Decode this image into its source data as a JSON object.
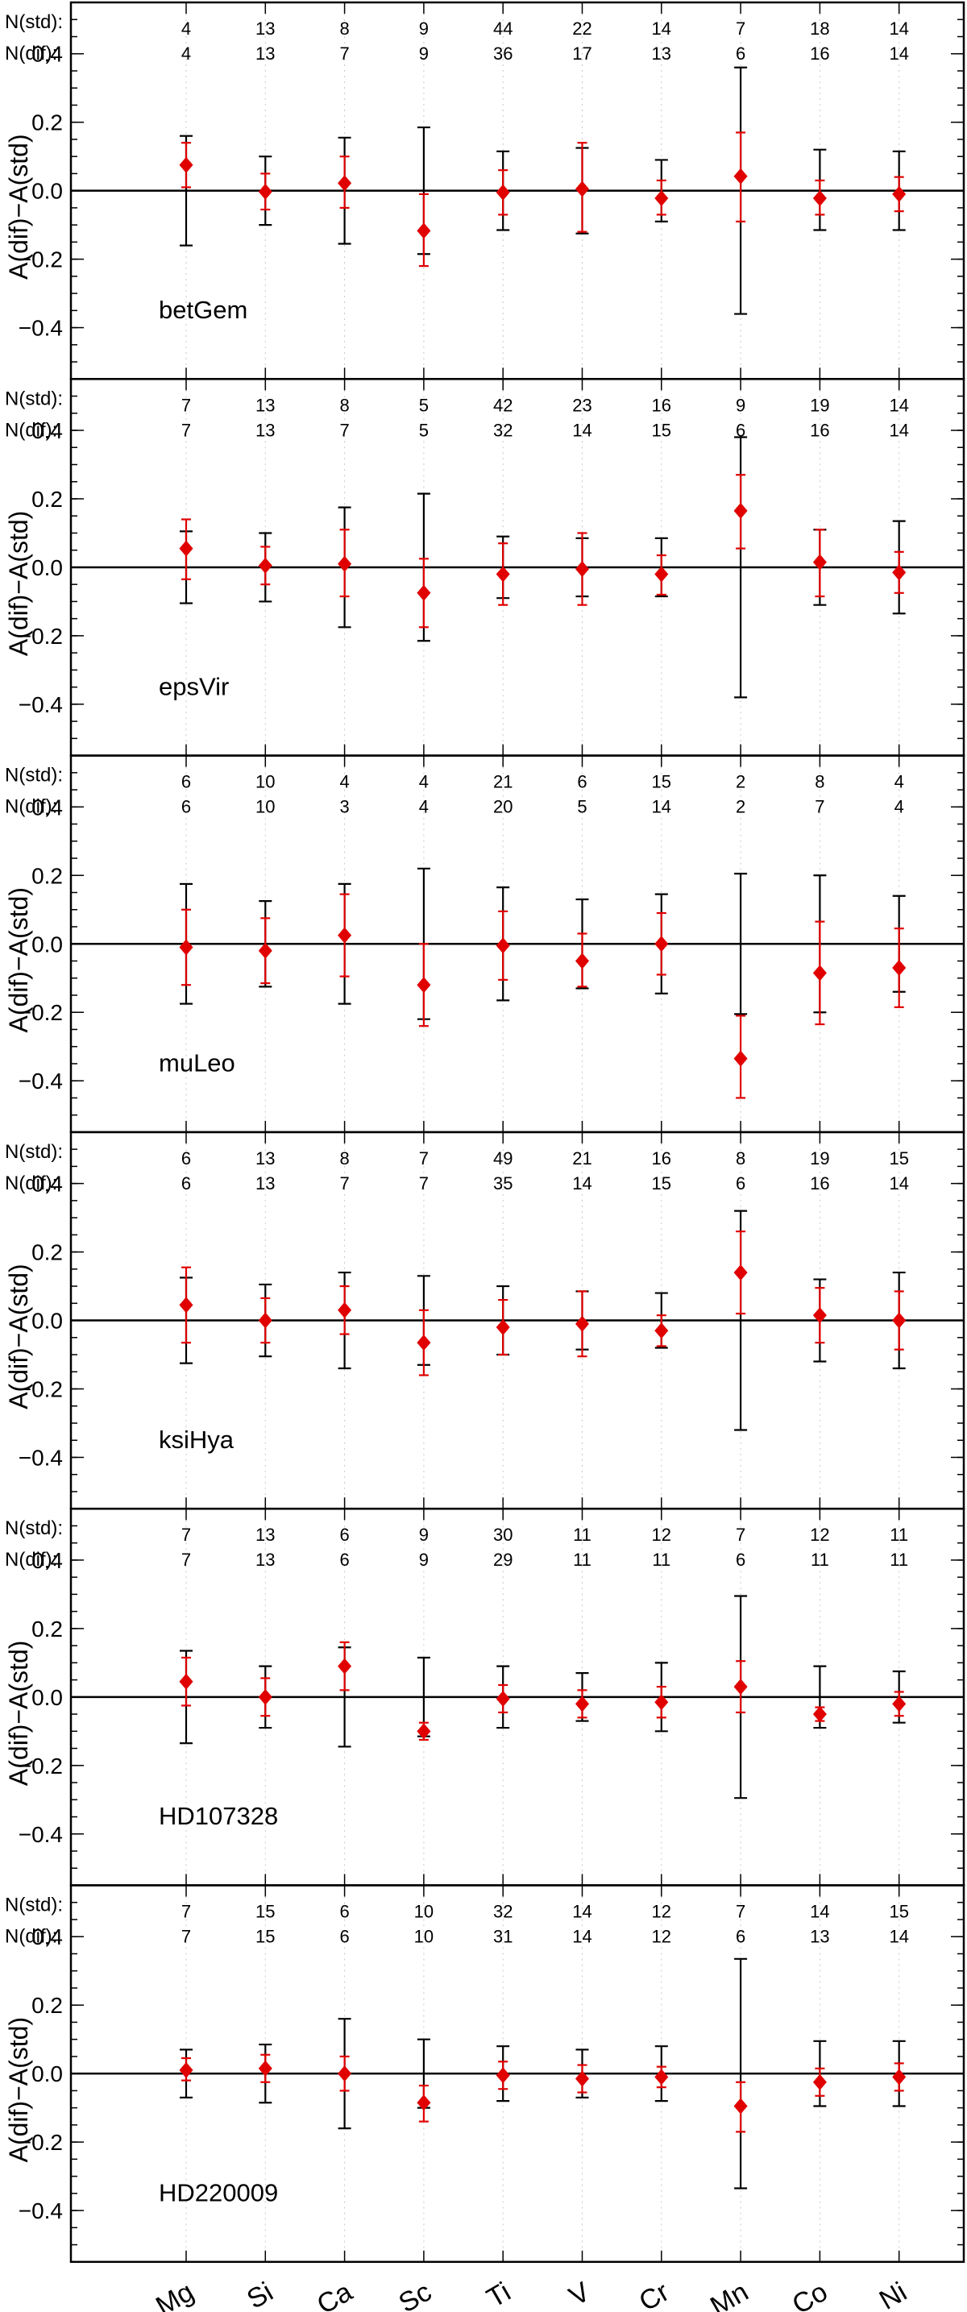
{
  "chart_data": {
    "type": "scatter",
    "ylabel": "A(dif)−A(std)",
    "categories": [
      "Mg",
      "Si",
      "Ca",
      "Sc",
      "Ti",
      "V",
      "Cr",
      "Mn",
      "Co",
      "Ni"
    ],
    "ylim": [
      -0.55,
      0.55
    ],
    "yticks": [
      -0.4,
      -0.2,
      0.0,
      0.2,
      0.4
    ],
    "ytick_labels": [
      "−0.4",
      "−0.2",
      "0.0",
      "0.2",
      "0.4"
    ],
    "count_labels": [
      "N(std):",
      "N(dif):"
    ],
    "marker_color": "#e00000",
    "errbar_colors": {
      "std": "#000000",
      "dif": "#e00000"
    },
    "grid": "vertical dotted gridlines at each element",
    "panels": [
      {
        "star": "betGem",
        "n_std": [
          4,
          13,
          8,
          9,
          44,
          22,
          14,
          7,
          18,
          14
        ],
        "n_dif": [
          4,
          13,
          7,
          9,
          36,
          17,
          13,
          6,
          16,
          14
        ],
        "values": [
          0.075,
          -0.003,
          0.022,
          -0.117,
          -0.005,
          0.005,
          -0.022,
          0.042,
          -0.022,
          -0.01
        ],
        "err_black": [
          [
            -0.16,
            0.16
          ],
          [
            -0.1,
            0.1
          ],
          [
            -0.155,
            0.155
          ],
          [
            -0.185,
            0.185
          ],
          [
            -0.115,
            0.115
          ],
          [
            -0.125,
            0.125
          ],
          [
            -0.09,
            0.09
          ],
          [
            -0.36,
            0.36
          ],
          [
            -0.115,
            0.12
          ],
          [
            -0.115,
            0.115
          ]
        ],
        "err_red": [
          [
            0.01,
            0.14
          ],
          [
            -0.055,
            0.05
          ],
          [
            -0.05,
            0.1
          ],
          [
            -0.22,
            -0.01
          ],
          [
            -0.07,
            0.06
          ],
          [
            -0.12,
            0.14
          ],
          [
            -0.07,
            0.03
          ],
          [
            -0.09,
            0.17
          ],
          [
            -0.07,
            0.03
          ],
          [
            -0.06,
            0.04
          ]
        ]
      },
      {
        "star": "epsVir",
        "n_std": [
          7,
          13,
          8,
          5,
          42,
          23,
          16,
          9,
          19,
          14
        ],
        "n_dif": [
          7,
          13,
          7,
          5,
          32,
          14,
          15,
          6,
          16,
          14
        ],
        "values": [
          0.055,
          0.005,
          0.01,
          -0.075,
          -0.02,
          -0.005,
          -0.02,
          0.165,
          0.015,
          -0.015
        ],
        "err_black": [
          [
            -0.105,
            0.105
          ],
          [
            -0.1,
            0.1
          ],
          [
            -0.175,
            0.175
          ],
          [
            -0.215,
            0.215
          ],
          [
            -0.09,
            0.09
          ],
          [
            -0.085,
            0.085
          ],
          [
            -0.085,
            0.085
          ],
          [
            -0.38,
            0.38
          ],
          [
            -0.11,
            0.11
          ],
          [
            -0.135,
            0.135
          ]
        ],
        "err_red": [
          [
            -0.035,
            0.14
          ],
          [
            -0.05,
            0.06
          ],
          [
            -0.085,
            0.11
          ],
          [
            -0.175,
            0.025
          ],
          [
            -0.11,
            0.07
          ],
          [
            -0.11,
            0.1
          ],
          [
            -0.08,
            0.035
          ],
          [
            0.055,
            0.27
          ],
          [
            -0.085,
            0.11
          ],
          [
            -0.075,
            0.045
          ]
        ]
      },
      {
        "star": "muLeo",
        "n_std": [
          6,
          10,
          4,
          4,
          21,
          6,
          15,
          2,
          8,
          4
        ],
        "n_dif": [
          6,
          10,
          3,
          4,
          20,
          5,
          14,
          2,
          7,
          4
        ],
        "values": [
          -0.01,
          -0.02,
          0.025,
          -0.12,
          -0.005,
          -0.05,
          0.0,
          -0.335,
          -0.085,
          -0.07
        ],
        "err_black": [
          [
            -0.175,
            0.175
          ],
          [
            -0.125,
            0.125
          ],
          [
            -0.175,
            0.175
          ],
          [
            -0.22,
            0.22
          ],
          [
            -0.165,
            0.165
          ],
          [
            -0.13,
            0.13
          ],
          [
            -0.145,
            0.145
          ],
          [
            -0.205,
            0.205
          ],
          [
            -0.2,
            0.2
          ],
          [
            -0.14,
            0.14
          ]
        ],
        "err_red": [
          [
            -0.12,
            0.1
          ],
          [
            -0.115,
            0.075
          ],
          [
            -0.095,
            0.145
          ],
          [
            -0.24,
            0.0
          ],
          [
            -0.105,
            0.095
          ],
          [
            -0.125,
            0.03
          ],
          [
            -0.09,
            0.09
          ],
          [
            -0.45,
            -0.21
          ],
          [
            -0.235,
            0.065
          ],
          [
            -0.185,
            0.045
          ]
        ]
      },
      {
        "star": "ksiHya",
        "n_std": [
          6,
          13,
          8,
          7,
          49,
          21,
          16,
          8,
          19,
          15
        ],
        "n_dif": [
          6,
          13,
          7,
          7,
          35,
          14,
          15,
          6,
          16,
          14
        ],
        "values": [
          0.045,
          0.0,
          0.03,
          -0.065,
          -0.02,
          -0.01,
          -0.03,
          0.14,
          0.015,
          0.0
        ],
        "err_black": [
          [
            -0.125,
            0.125
          ],
          [
            -0.105,
            0.105
          ],
          [
            -0.14,
            0.14
          ],
          [
            -0.13,
            0.13
          ],
          [
            -0.1,
            0.1
          ],
          [
            -0.085,
            0.085
          ],
          [
            -0.08,
            0.08
          ],
          [
            -0.32,
            0.32
          ],
          [
            -0.12,
            0.12
          ],
          [
            -0.14,
            0.14
          ]
        ],
        "err_red": [
          [
            -0.065,
            0.155
          ],
          [
            -0.065,
            0.065
          ],
          [
            -0.04,
            0.1
          ],
          [
            -0.16,
            0.03
          ],
          [
            -0.1,
            0.06
          ],
          [
            -0.105,
            0.085
          ],
          [
            -0.075,
            0.015
          ],
          [
            0.02,
            0.26
          ],
          [
            -0.065,
            0.095
          ],
          [
            -0.085,
            0.085
          ]
        ]
      },
      {
        "star": "HD107328",
        "n_std": [
          7,
          13,
          6,
          9,
          30,
          11,
          12,
          7,
          12,
          11
        ],
        "n_dif": [
          7,
          13,
          6,
          9,
          29,
          11,
          11,
          6,
          11,
          11
        ],
        "values": [
          0.045,
          0.0,
          0.09,
          -0.1,
          -0.005,
          -0.02,
          -0.015,
          0.03,
          -0.05,
          -0.02
        ],
        "err_black": [
          [
            -0.135,
            0.135
          ],
          [
            -0.09,
            0.09
          ],
          [
            -0.145,
            0.145
          ],
          [
            -0.115,
            0.115
          ],
          [
            -0.09,
            0.09
          ],
          [
            -0.07,
            0.07
          ],
          [
            -0.1,
            0.1
          ],
          [
            -0.295,
            0.295
          ],
          [
            -0.09,
            0.09
          ],
          [
            -0.075,
            0.075
          ]
        ],
        "err_red": [
          [
            -0.025,
            0.115
          ],
          [
            -0.055,
            0.055
          ],
          [
            0.02,
            0.16
          ],
          [
            -0.125,
            -0.075
          ],
          [
            -0.045,
            0.035
          ],
          [
            -0.06,
            0.02
          ],
          [
            -0.06,
            0.03
          ],
          [
            -0.045,
            0.105
          ],
          [
            -0.07,
            -0.03
          ],
          [
            -0.055,
            0.015
          ]
        ]
      },
      {
        "star": "HD220009",
        "n_std": [
          7,
          15,
          6,
          10,
          32,
          14,
          12,
          7,
          14,
          15
        ],
        "n_dif": [
          7,
          15,
          6,
          10,
          31,
          14,
          12,
          6,
          13,
          14
        ],
        "values": [
          0.01,
          0.015,
          0.0,
          -0.085,
          -0.005,
          -0.015,
          -0.01,
          -0.095,
          -0.025,
          -0.01
        ],
        "err_black": [
          [
            -0.07,
            0.07
          ],
          [
            -0.085,
            0.085
          ],
          [
            -0.16,
            0.16
          ],
          [
            -0.1,
            0.1
          ],
          [
            -0.08,
            0.08
          ],
          [
            -0.07,
            0.07
          ],
          [
            -0.08,
            0.08
          ],
          [
            -0.335,
            0.335
          ],
          [
            -0.095,
            0.095
          ],
          [
            -0.095,
            0.095
          ]
        ],
        "err_red": [
          [
            -0.02,
            0.045
          ],
          [
            -0.025,
            0.055
          ],
          [
            -0.05,
            0.05
          ],
          [
            -0.14,
            -0.035
          ],
          [
            -0.045,
            0.035
          ],
          [
            -0.055,
            0.025
          ],
          [
            -0.04,
            0.02
          ],
          [
            -0.17,
            -0.025
          ],
          [
            -0.065,
            0.015
          ],
          [
            -0.05,
            0.03
          ]
        ]
      }
    ]
  }
}
